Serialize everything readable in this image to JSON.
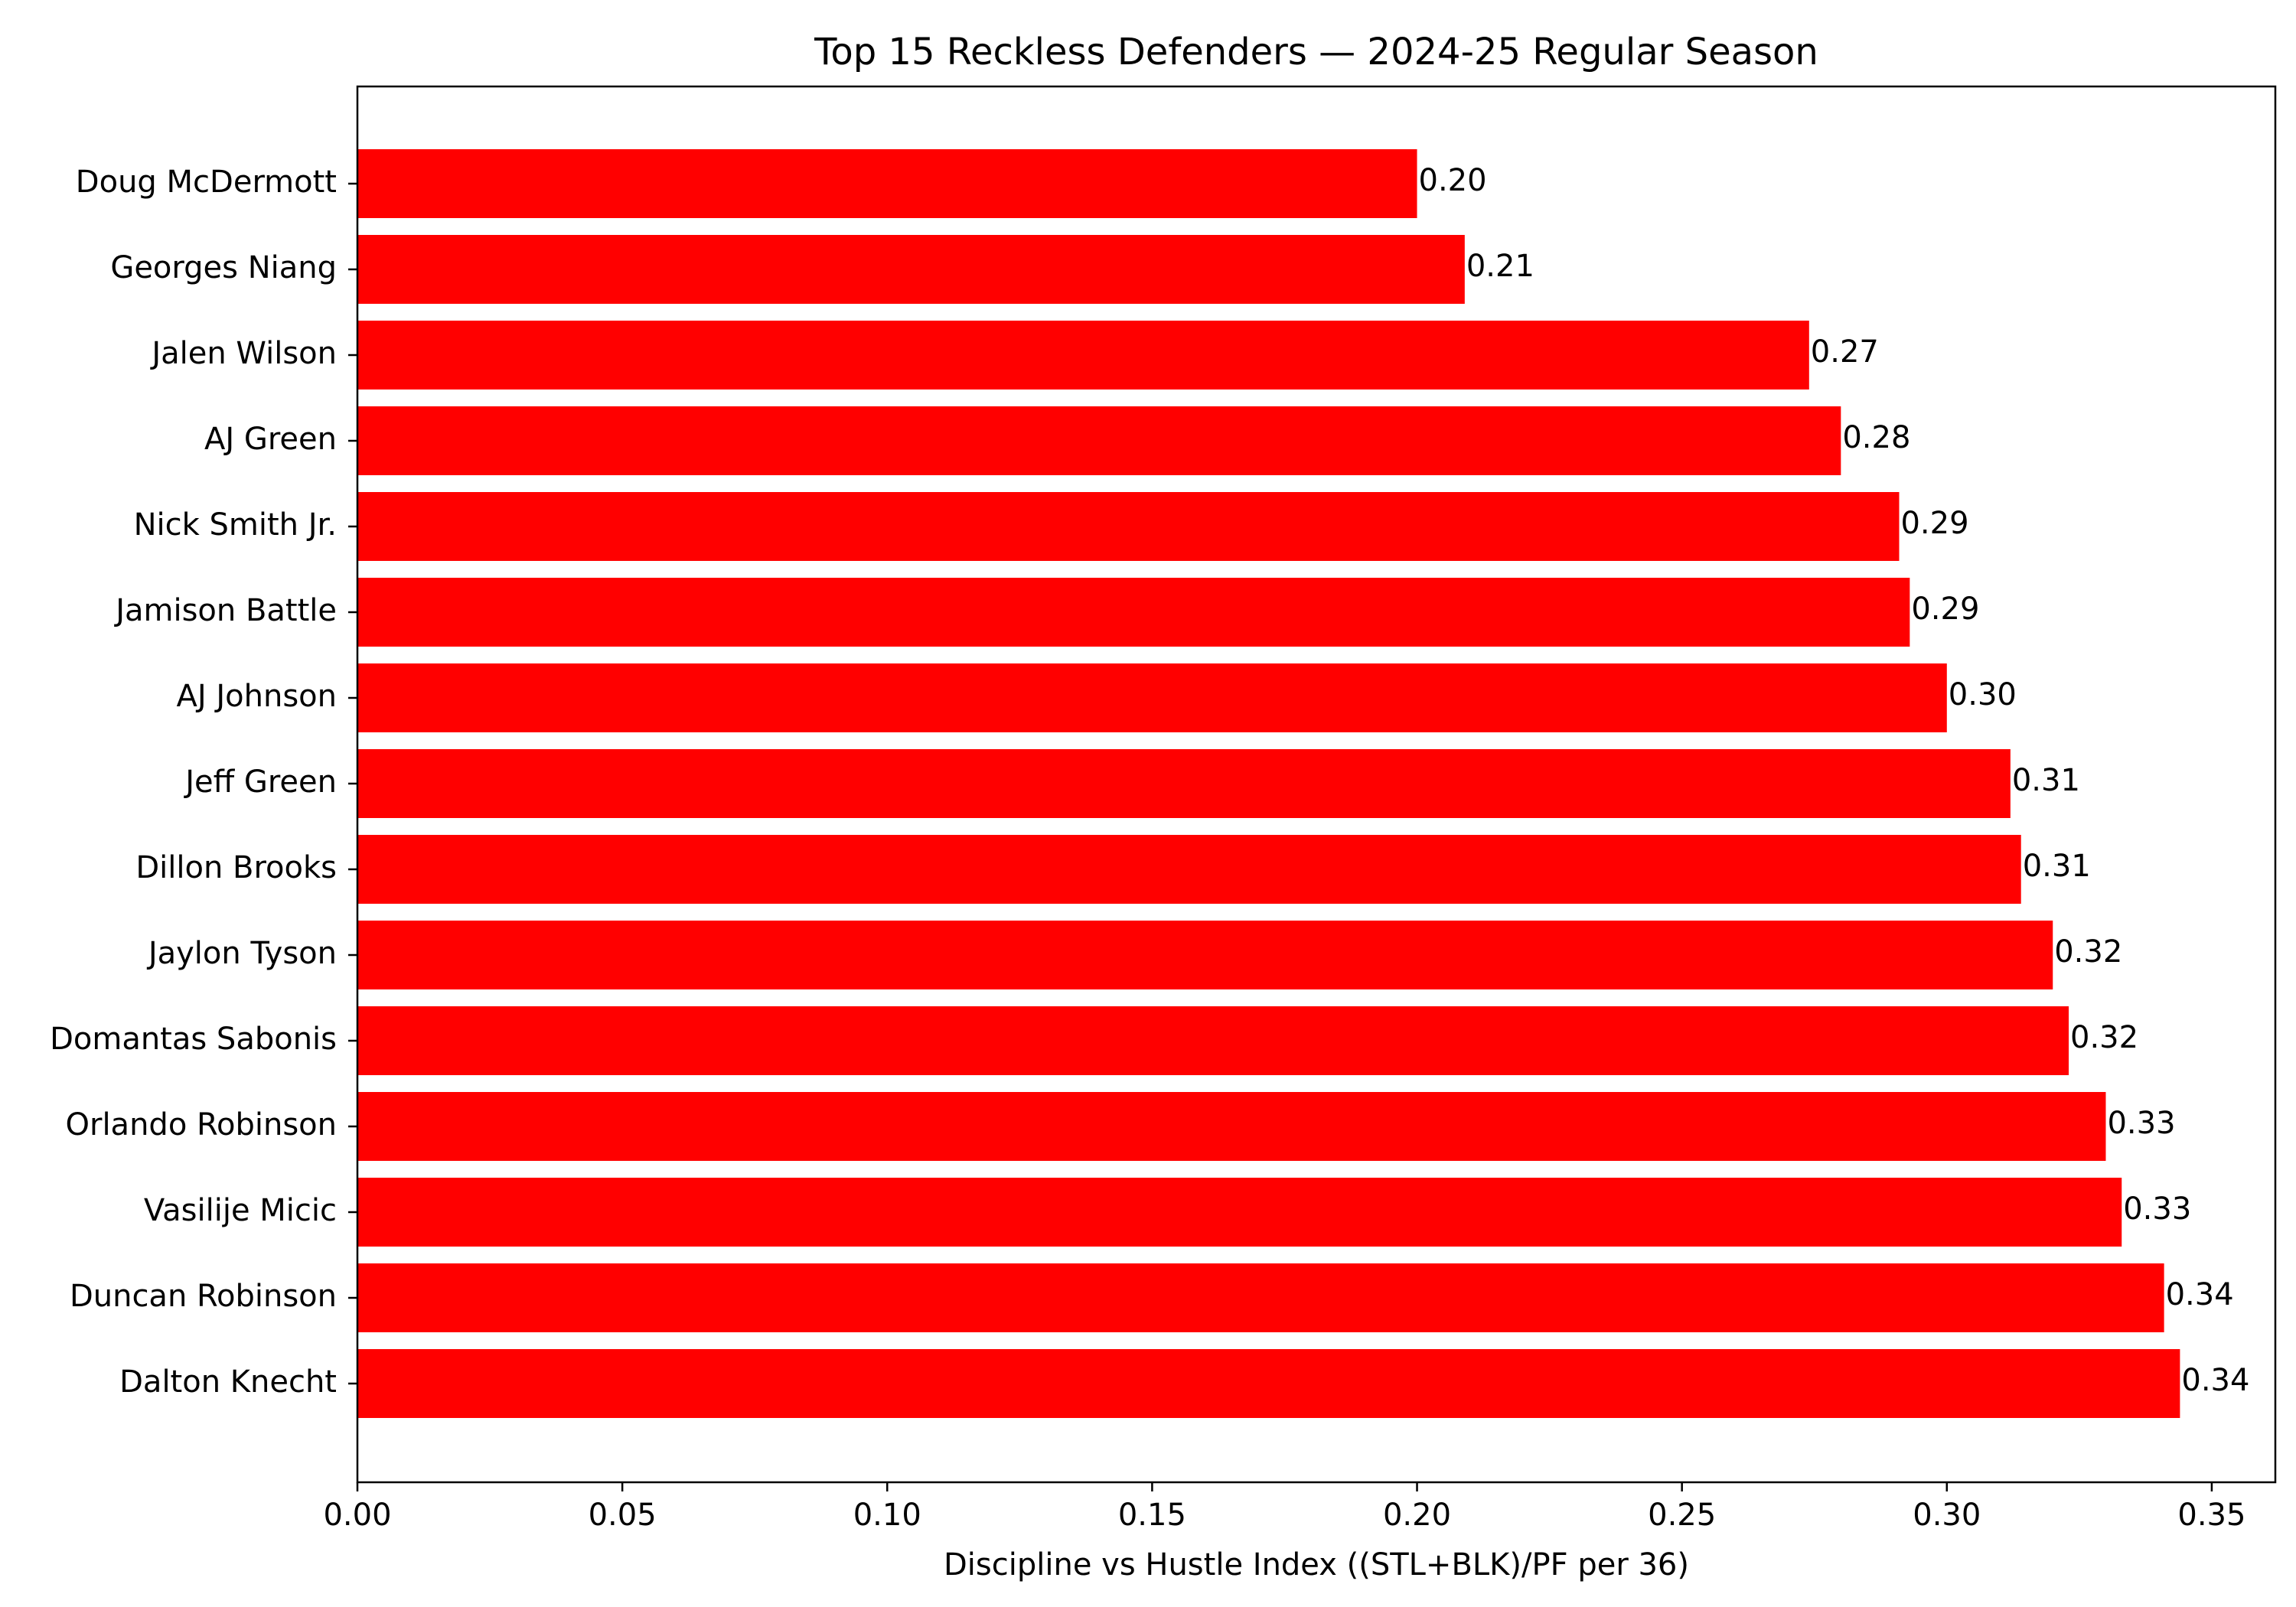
{
  "chart_data": {
    "type": "bar",
    "orientation": "horizontal",
    "title": "Top 15 Reckless Defenders — 2024-25 Regular Season",
    "xlabel": "Discipline vs Hustle Index ((STL+BLK)/PF per 36)",
    "ylabel": "",
    "xlim": [
      0,
      0.362
    ],
    "xticks": [
      "0.00",
      "0.05",
      "0.10",
      "0.15",
      "0.20",
      "0.25",
      "0.30",
      "0.35"
    ],
    "bar_color": "#ff0000",
    "categories": [
      "Doug McDermott",
      "Georges Niang",
      "Jalen Wilson",
      "AJ Green",
      "Nick Smith Jr.",
      "Jamison Battle",
      "AJ Johnson",
      "Jeff Green",
      "Dillon Brooks",
      "Jaylon Tyson",
      "Domantas Sabonis",
      "Orlando Robinson",
      "Vasilije Micic",
      "Duncan Robinson",
      "Dalton Knecht"
    ],
    "values": [
      0.2,
      0.209,
      0.274,
      0.28,
      0.291,
      0.293,
      0.3,
      0.312,
      0.314,
      0.32,
      0.323,
      0.33,
      0.333,
      0.341,
      0.344
    ],
    "value_labels": [
      "0.20",
      "0.21",
      "0.27",
      "0.28",
      "0.29",
      "0.29",
      "0.30",
      "0.31",
      "0.31",
      "0.32",
      "0.32",
      "0.33",
      "0.33",
      "0.34",
      "0.34"
    ]
  }
}
